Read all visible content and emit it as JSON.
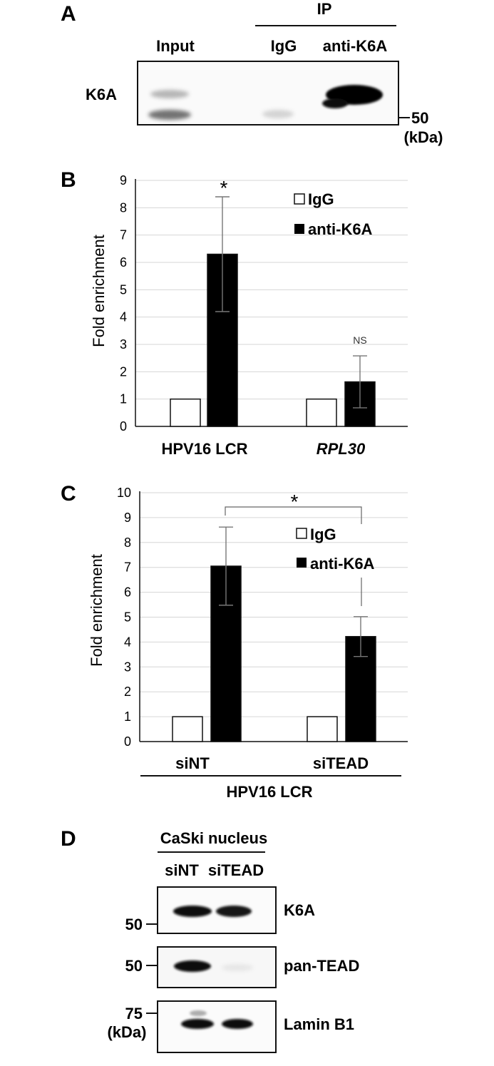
{
  "colors": {
    "ink": "#111111",
    "grid": "#d6d6d6",
    "bar_igg": "#ffffff",
    "bar_k6a": "#000000",
    "err": "#777777"
  },
  "panel_a": {
    "letter": "A",
    "ip_label": "IP",
    "lanes": [
      "Input",
      "IgG",
      "anti-K6A"
    ],
    "row_label": "K6A",
    "marker": "50",
    "marker_unit": "(kDa)"
  },
  "panel_b": {
    "letter": "B"
  },
  "panel_c": {
    "letter": "C",
    "group_label": "HPV16 LCR"
  },
  "panel_d": {
    "letter": "D",
    "title": "CaSki nucleus",
    "lanes": [
      "siNT",
      "siTEAD"
    ],
    "blots": [
      {
        "label": "K6A",
        "marker": "50"
      },
      {
        "label": "pan-TEAD",
        "marker": "50"
      },
      {
        "label": "Lamin B1",
        "marker": "75"
      }
    ],
    "marker_unit": "(kDa)"
  },
  "chart_data": [
    {
      "type": "bar",
      "panel": "B",
      "categories": [
        "HPV16 LCR",
        "RPL30"
      ],
      "series": [
        {
          "name": "IgG",
          "values": [
            1,
            1
          ]
        },
        {
          "name": "anti-K6A",
          "values": [
            6.3,
            1.63
          ],
          "errors": [
            2.1,
            0.95
          ]
        }
      ],
      "ylabel": "Fold enrichment",
      "ylim": [
        0,
        9
      ],
      "yticks": [
        0,
        1,
        2,
        3,
        4,
        5,
        6,
        7,
        8,
        9
      ],
      "grid": true,
      "legend": "top-right",
      "annotations": [
        "*",
        "NS"
      ]
    },
    {
      "type": "bar",
      "panel": "C",
      "categories": [
        "siNT",
        "siTEAD"
      ],
      "series": [
        {
          "name": "IgG",
          "values": [
            1,
            1
          ]
        },
        {
          "name": "anti-K6A",
          "values": [
            7.05,
            4.22
          ],
          "errors": [
            1.57,
            0.8
          ]
        }
      ],
      "ylabel": "Fold enrichment",
      "ylim": [
        0,
        10
      ],
      "yticks": [
        0,
        1,
        2,
        3,
        4,
        5,
        6,
        7,
        8,
        9,
        10
      ],
      "grid": true,
      "legend": "top-right",
      "annotations": [
        "*"
      ]
    }
  ]
}
